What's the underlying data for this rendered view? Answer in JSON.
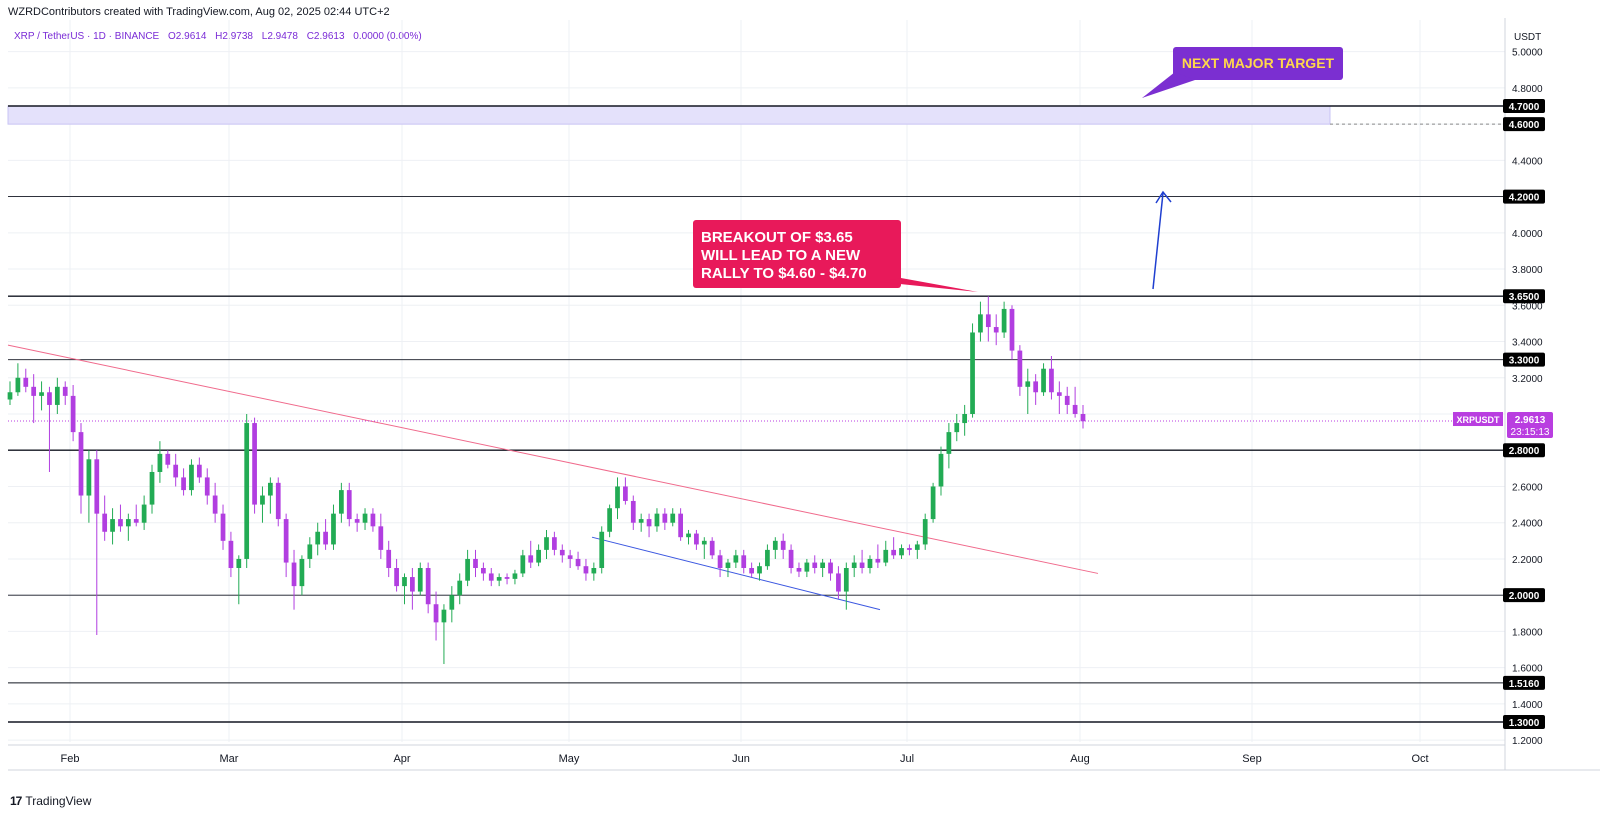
{
  "header": {
    "attribution": "WZRDContributors created with TradingView.com, Aug 02, 2025 02:44 UTC+2",
    "symbol": "XRP / TetherUS · 1D · BINANCE",
    "open": "O2.9614",
    "high": "H2.9738",
    "low": "L2.9478",
    "close": "C2.9613",
    "change": "0.0000 (0.00%)"
  },
  "footer": {
    "brand": "TradingView"
  },
  "chart_data": {
    "type": "candlestick",
    "symbol": "XRPUSDT",
    "currency_label": "USDT",
    "x_tick_labels": [
      "Feb",
      "Mar",
      "Apr",
      "May",
      "Jun",
      "Jul",
      "Aug",
      "Sep",
      "Oct"
    ],
    "y_tick_labels": [
      "1.2000",
      "1.4000",
      "1.6000",
      "1.8000",
      "2.2000",
      "2.4000",
      "2.6000",
      "3.2000",
      "3.4000",
      "3.6000",
      "3.8000",
      "4.0000",
      "4.4000",
      "4.8000",
      "5.0000"
    ],
    "ylim": [
      1.18,
      5.1
    ],
    "price_badge": {
      "label": "XRPUSDT",
      "value": "2.9613",
      "countdown": "23:15:13",
      "color": "#b93ee0"
    },
    "horizontal_levels": [
      {
        "value": 4.7,
        "label": "4.7000"
      },
      {
        "value": 4.6,
        "label": "4.6000",
        "dashed": true
      },
      {
        "value": 4.2,
        "label": "4.2000"
      },
      {
        "value": 3.65,
        "label": "3.6500"
      },
      {
        "value": 3.3,
        "label": "3.3000"
      },
      {
        "value": 2.8,
        "label": "2.8000"
      },
      {
        "value": 2.0,
        "label": "2.0000"
      },
      {
        "value": 1.516,
        "label": "1.5160"
      },
      {
        "value": 1.3,
        "label": "1.3000"
      }
    ],
    "target_zone": {
      "from": 4.6,
      "to": 4.7,
      "color": "#e4e1fb"
    },
    "annotations": [
      {
        "text": "BREAKOUT OF $3.65 WILL LEAD TO A NEW RALLY TO $4.60 - $4.70",
        "color": "#e8195a"
      },
      {
        "text": "NEXT MAJOR TARGET",
        "color": "#7b2fd1",
        "text_color": "#ffd84a"
      }
    ],
    "colors": {
      "up": "#22ab54",
      "down": "#b13ee0",
      "downtrend": "#f06a8c",
      "channel": "#3b57e0",
      "arrow": "#1f3fd0"
    },
    "candles": [
      [
        3.08,
        3.18,
        3.05,
        3.12
      ],
      [
        3.12,
        3.28,
        3.1,
        3.2
      ],
      [
        3.2,
        3.25,
        3.12,
        3.15
      ],
      [
        3.15,
        3.22,
        2.95,
        3.1
      ],
      [
        3.1,
        3.18,
        3.02,
        3.12
      ],
      [
        3.12,
        3.15,
        2.68,
        3.05
      ],
      [
        3.05,
        3.2,
        3.0,
        3.15
      ],
      [
        3.15,
        3.18,
        3.05,
        3.1
      ],
      [
        3.1,
        3.16,
        2.85,
        2.9
      ],
      [
        2.9,
        2.95,
        2.45,
        2.55
      ],
      [
        2.55,
        2.8,
        2.4,
        2.75
      ],
      [
        2.75,
        2.8,
        1.78,
        2.45
      ],
      [
        2.45,
        2.55,
        2.3,
        2.35
      ],
      [
        2.35,
        2.48,
        2.28,
        2.42
      ],
      [
        2.42,
        2.5,
        2.35,
        2.38
      ],
      [
        2.38,
        2.45,
        2.3,
        2.42
      ],
      [
        2.42,
        2.5,
        2.38,
        2.4
      ],
      [
        2.4,
        2.55,
        2.36,
        2.5
      ],
      [
        2.5,
        2.72,
        2.45,
        2.68
      ],
      [
        2.68,
        2.85,
        2.62,
        2.78
      ],
      [
        2.78,
        2.8,
        2.7,
        2.72
      ],
      [
        2.72,
        2.78,
        2.6,
        2.65
      ],
      [
        2.65,
        2.7,
        2.55,
        2.58
      ],
      [
        2.58,
        2.75,
        2.55,
        2.72
      ],
      [
        2.72,
        2.76,
        2.62,
        2.65
      ],
      [
        2.65,
        2.7,
        2.5,
        2.55
      ],
      [
        2.55,
        2.62,
        2.4,
        2.45
      ],
      [
        2.45,
        2.5,
        2.25,
        2.3
      ],
      [
        2.3,
        2.35,
        2.1,
        2.15
      ],
      [
        2.15,
        2.22,
        1.95,
        2.2
      ],
      [
        2.2,
        3.0,
        2.15,
        2.95
      ],
      [
        2.95,
        2.98,
        2.45,
        2.5
      ],
      [
        2.5,
        2.6,
        2.4,
        2.55
      ],
      [
        2.55,
        2.65,
        2.45,
        2.62
      ],
      [
        2.62,
        2.65,
        2.38,
        2.42
      ],
      [
        2.42,
        2.45,
        2.1,
        2.18
      ],
      [
        2.18,
        2.25,
        1.92,
        2.05
      ],
      [
        2.05,
        2.22,
        2.0,
        2.2
      ],
      [
        2.2,
        2.32,
        2.15,
        2.28
      ],
      [
        2.28,
        2.4,
        2.22,
        2.35
      ],
      [
        2.35,
        2.42,
        2.25,
        2.28
      ],
      [
        2.28,
        2.5,
        2.25,
        2.45
      ],
      [
        2.45,
        2.62,
        2.4,
        2.58
      ],
      [
        2.58,
        2.62,
        2.38,
        2.42
      ],
      [
        2.42,
        2.45,
        2.35,
        2.4
      ],
      [
        2.4,
        2.48,
        2.36,
        2.45
      ],
      [
        2.45,
        2.48,
        2.35,
        2.38
      ],
      [
        2.38,
        2.45,
        2.2,
        2.25
      ],
      [
        2.25,
        2.3,
        2.1,
        2.15
      ],
      [
        2.15,
        2.2,
        2.02,
        2.05
      ],
      [
        2.05,
        2.12,
        1.95,
        2.1
      ],
      [
        2.1,
        2.15,
        1.92,
        2.02
      ],
      [
        2.02,
        2.18,
        2.0,
        2.15
      ],
      [
        2.15,
        2.18,
        1.9,
        1.95
      ],
      [
        1.95,
        2.02,
        1.75,
        1.85
      ],
      [
        1.85,
        1.95,
        1.62,
        1.92
      ],
      [
        1.92,
        2.05,
        1.85,
        2.0
      ],
      [
        2.0,
        2.12,
        1.95,
        2.08
      ],
      [
        2.08,
        2.25,
        2.05,
        2.2
      ],
      [
        2.2,
        2.25,
        2.1,
        2.15
      ],
      [
        2.15,
        2.18,
        2.08,
        2.12
      ],
      [
        2.12,
        2.15,
        2.05,
        2.08
      ],
      [
        2.08,
        2.12,
        2.05,
        2.1
      ],
      [
        2.1,
        2.12,
        2.06,
        2.09
      ],
      [
        2.09,
        2.14,
        2.06,
        2.12
      ],
      [
        2.12,
        2.25,
        2.1,
        2.22
      ],
      [
        2.22,
        2.3,
        2.15,
        2.18
      ],
      [
        2.18,
        2.28,
        2.16,
        2.25
      ],
      [
        2.25,
        2.36,
        2.2,
        2.32
      ],
      [
        2.32,
        2.35,
        2.22,
        2.25
      ],
      [
        2.25,
        2.28,
        2.18,
        2.22
      ],
      [
        2.22,
        2.25,
        2.15,
        2.2
      ],
      [
        2.2,
        2.24,
        2.14,
        2.16
      ],
      [
        2.16,
        2.2,
        2.08,
        2.12
      ],
      [
        2.12,
        2.18,
        2.08,
        2.15
      ],
      [
        2.15,
        2.38,
        2.12,
        2.35
      ],
      [
        2.35,
        2.5,
        2.32,
        2.48
      ],
      [
        2.48,
        2.65,
        2.42,
        2.6
      ],
      [
        2.6,
        2.65,
        2.5,
        2.52
      ],
      [
        2.52,
        2.55,
        2.36,
        2.4
      ],
      [
        2.4,
        2.45,
        2.35,
        2.42
      ],
      [
        2.42,
        2.45,
        2.32,
        2.38
      ],
      [
        2.38,
        2.48,
        2.35,
        2.45
      ],
      [
        2.45,
        2.48,
        2.36,
        2.4
      ],
      [
        2.4,
        2.48,
        2.38,
        2.45
      ],
      [
        2.45,
        2.48,
        2.3,
        2.32
      ],
      [
        2.32,
        2.36,
        2.28,
        2.34
      ],
      [
        2.34,
        2.36,
        2.25,
        2.28
      ],
      [
        2.28,
        2.32,
        2.2,
        2.3
      ],
      [
        2.3,
        2.32,
        2.2,
        2.22
      ],
      [
        2.22,
        2.25,
        2.1,
        2.15
      ],
      [
        2.15,
        2.2,
        2.1,
        2.18
      ],
      [
        2.18,
        2.25,
        2.15,
        2.22
      ],
      [
        2.22,
        2.25,
        2.12,
        2.15
      ],
      [
        2.15,
        2.18,
        2.1,
        2.12
      ],
      [
        2.12,
        2.18,
        2.08,
        2.16
      ],
      [
        2.16,
        2.28,
        2.14,
        2.25
      ],
      [
        2.25,
        2.32,
        2.2,
        2.3
      ],
      [
        2.3,
        2.34,
        2.2,
        2.25
      ],
      [
        2.25,
        2.28,
        2.12,
        2.15
      ],
      [
        2.15,
        2.18,
        2.1,
        2.13
      ],
      [
        2.13,
        2.2,
        2.1,
        2.18
      ],
      [
        2.18,
        2.22,
        2.12,
        2.15
      ],
      [
        2.15,
        2.2,
        2.1,
        2.18
      ],
      [
        2.18,
        2.2,
        2.08,
        2.12
      ],
      [
        2.12,
        2.16,
        1.98,
        2.02
      ],
      [
        2.02,
        2.18,
        1.92,
        2.15
      ],
      [
        2.15,
        2.22,
        2.1,
        2.18
      ],
      [
        2.18,
        2.25,
        2.12,
        2.15
      ],
      [
        2.15,
        2.22,
        2.12,
        2.2
      ],
      [
        2.2,
        2.28,
        2.15,
        2.18
      ],
      [
        2.18,
        2.3,
        2.16,
        2.25
      ],
      [
        2.25,
        2.32,
        2.2,
        2.22
      ],
      [
        2.22,
        2.28,
        2.2,
        2.26
      ],
      [
        2.26,
        2.28,
        2.22,
        2.25
      ],
      [
        2.25,
        2.3,
        2.2,
        2.28
      ],
      [
        2.28,
        2.45,
        2.25,
        2.42
      ],
      [
        2.42,
        2.62,
        2.4,
        2.6
      ],
      [
        2.6,
        2.82,
        2.55,
        2.78
      ],
      [
        2.78,
        2.95,
        2.7,
        2.9
      ],
      [
        2.9,
        3.0,
        2.85,
        2.95
      ],
      [
        2.95,
        3.05,
        2.88,
        3.0
      ],
      [
        3.0,
        3.5,
        2.98,
        3.45
      ],
      [
        3.45,
        3.62,
        3.4,
        3.55
      ],
      [
        3.55,
        3.65,
        3.4,
        3.48
      ],
      [
        3.48,
        3.55,
        3.38,
        3.45
      ],
      [
        3.45,
        3.62,
        3.42,
        3.58
      ],
      [
        3.58,
        3.6,
        3.3,
        3.35
      ],
      [
        3.35,
        3.38,
        3.1,
        3.15
      ],
      [
        3.15,
        3.25,
        3.0,
        3.18
      ],
      [
        3.18,
        3.22,
        3.05,
        3.12
      ],
      [
        3.12,
        3.28,
        3.1,
        3.25
      ],
      [
        3.25,
        3.32,
        3.08,
        3.12
      ],
      [
        3.12,
        3.18,
        3.0,
        3.1
      ],
      [
        3.1,
        3.15,
        3.0,
        3.05
      ],
      [
        3.05,
        3.15,
        2.98,
        3.0
      ],
      [
        3.0,
        3.05,
        2.92,
        2.96
      ]
    ]
  }
}
